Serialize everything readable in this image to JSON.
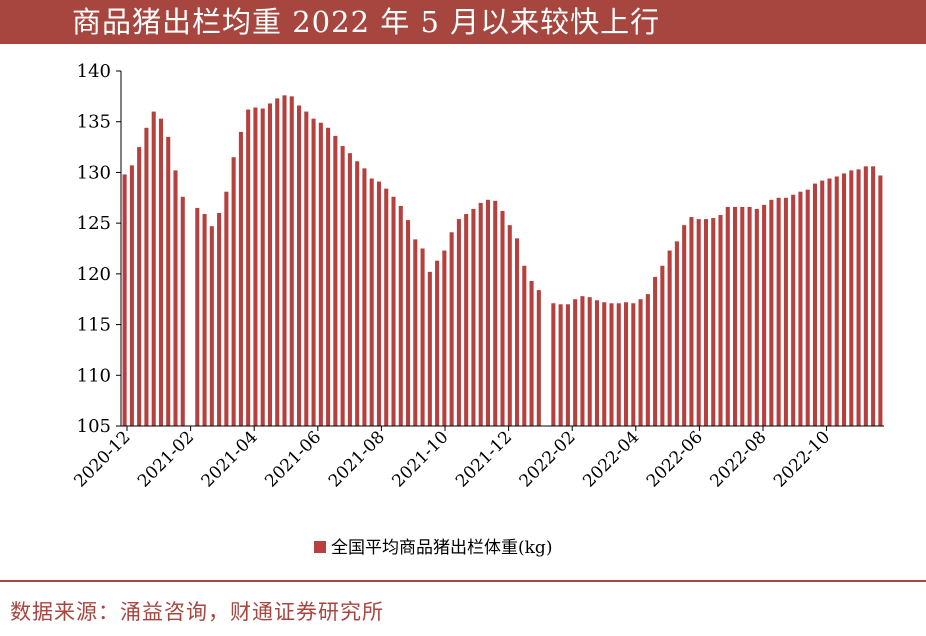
{
  "title": "商品猪出栏均重 2022 年 5 月以来较快上行",
  "source": "数据来源：涌益咨询，财通证券研究所",
  "colors": {
    "accent": "#a7463f",
    "bar": "#b5403d"
  },
  "chart_data": {
    "type": "bar",
    "ylim": [
      105,
      140
    ],
    "yticks": [
      105,
      110,
      115,
      120,
      125,
      130,
      135,
      140
    ],
    "xticks": [
      "2020-12",
      "2021-02",
      "2021-04",
      "2021-06",
      "2021-08",
      "2021-10",
      "2021-12",
      "2022-02",
      "2022-04",
      "2022-06",
      "2022-08",
      "2022-10"
    ],
    "grid": false,
    "legend_position": "bottom",
    "series": [
      {
        "name": "全国平均商品猪出栏体重(kg)",
        "values": [
          129.8,
          130.7,
          132.5,
          134.4,
          136.0,
          135.3,
          133.5,
          130.2,
          127.6,
          null,
          126.5,
          125.9,
          124.7,
          126.0,
          128.1,
          131.5,
          134.0,
          136.2,
          136.4,
          136.3,
          136.8,
          137.3,
          137.6,
          137.5,
          136.6,
          136.0,
          135.3,
          134.9,
          134.4,
          133.6,
          132.6,
          131.9,
          131.1,
          130.4,
          129.4,
          129.1,
          128.4,
          127.6,
          126.7,
          125.3,
          123.4,
          122.5,
          120.2,
          121.3,
          122.3,
          124.1,
          125.4,
          125.9,
          126.4,
          127.0,
          127.3,
          127.2,
          126.2,
          124.8,
          123.5,
          120.8,
          119.3,
          118.4,
          null,
          117.1,
          117.0,
          117.0,
          117.5,
          117.8,
          117.7,
          117.4,
          117.2,
          117.1,
          117.1,
          117.2,
          117.1,
          117.5,
          118.0,
          119.7,
          120.8,
          122.3,
          123.2,
          124.8,
          125.6,
          125.4,
          125.4,
          125.5,
          125.8,
          126.6,
          126.6,
          126.6,
          126.6,
          126.4,
          126.8,
          127.3,
          127.5,
          127.5,
          127.8,
          128.1,
          128.3,
          128.9,
          129.2,
          129.4,
          129.6,
          129.9,
          130.2,
          130.3,
          130.6,
          130.6,
          129.7
        ]
      }
    ]
  }
}
